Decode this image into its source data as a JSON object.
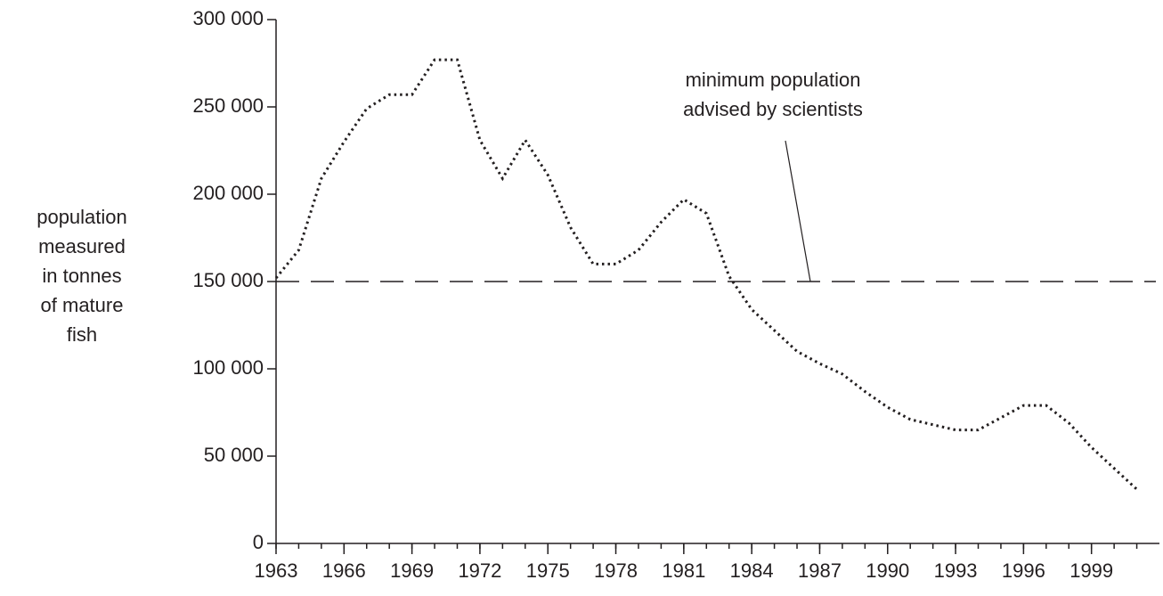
{
  "chart_data": {
    "type": "line",
    "ylabel": [
      "population",
      "measured",
      "in tonnes",
      "of mature",
      "fish"
    ],
    "annotation": [
      "minimum population",
      "advised by scientists"
    ],
    "threshold": 150000,
    "x": [
      1963,
      1964,
      1965,
      1966,
      1967,
      1968,
      1969,
      1970,
      1971,
      1972,
      1973,
      1974,
      1975,
      1976,
      1977,
      1978,
      1979,
      1980,
      1981,
      1982,
      1983,
      1984,
      1985,
      1986,
      1987,
      1988,
      1989,
      1990,
      1991,
      1992,
      1993,
      1994,
      1995,
      1996,
      1997,
      1998,
      1999,
      2000,
      2001
    ],
    "series": [
      {
        "color": "#231f20",
        "values": [
          152000,
          168000,
          209000,
          230000,
          249000,
          257000,
          257000,
          277000,
          277000,
          231000,
          209000,
          231000,
          211000,
          181000,
          160000,
          160000,
          168000,
          184000,
          197000,
          189000,
          153000,
          134000,
          122000,
          110000,
          103000,
          97000,
          87000,
          78000,
          71000,
          68000,
          65000,
          65000,
          72000,
          79000,
          79000,
          69000,
          55000,
          43000,
          31000
        ]
      }
    ],
    "xlim": [
      1963,
      2002
    ],
    "xticks": [
      1963,
      1966,
      1969,
      1972,
      1975,
      1978,
      1981,
      1984,
      1987,
      1990,
      1993,
      1996,
      1999
    ],
    "ylim": [
      0,
      300000
    ],
    "yticks": [
      0,
      {
        "value": 50000,
        "label": "50 000"
      },
      {
        "value": 100000,
        "label": "100 000"
      },
      {
        "value": 150000,
        "label": "150 000"
      },
      {
        "value": 200000,
        "label": "200 000"
      },
      {
        "value": 250000,
        "label": "250 000"
      },
      {
        "value": 300000,
        "label": "300 000"
      }
    ]
  }
}
